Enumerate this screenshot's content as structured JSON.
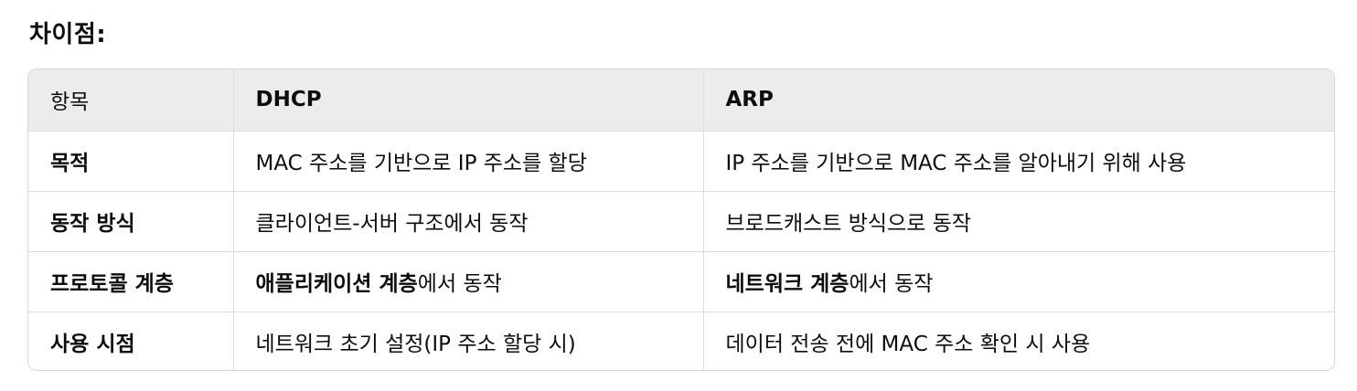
{
  "heading": "차이점:",
  "table": {
    "headers": [
      "항목",
      "DHCP",
      "ARP"
    ],
    "rows": [
      {
        "item": "목적",
        "dhcp": "MAC 주소를 기반으로 IP 주소를 할당",
        "arp": "IP 주소를 기반으로 MAC 주소를 알아내기 위해 사용"
      },
      {
        "item": "동작 방식",
        "dhcp": "클라이언트-서버 구조에서 동작",
        "arp": "브로드캐스트 방식으로 동작"
      },
      {
        "item": "프로토콜 계층",
        "dhcp_bold": "애플리케이션 계층",
        "dhcp_rest": "에서 동작",
        "arp_bold": "네트워크 계층",
        "arp_rest": "에서 동작"
      },
      {
        "item": "사용 시점",
        "dhcp": "네트워크 초기 설정(IP 주소 할당 시)",
        "arp": "데이터 전송 전에 MAC 주소 확인 시 사용"
      }
    ]
  }
}
